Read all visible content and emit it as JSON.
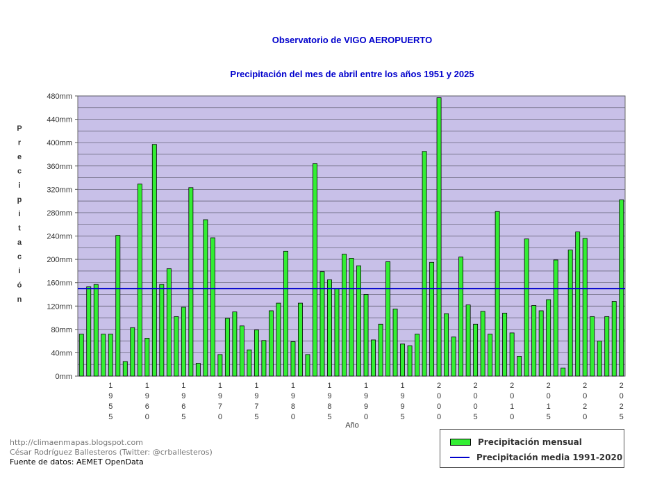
{
  "chart_data": {
    "type": "bar",
    "title": "Observatorio de VIGO AEROPUERTO",
    "subtitle": "Precipitación del mes de abril entre los años 1951 y 2025",
    "xlabel": "Año",
    "ylabel": "Precipitación",
    "ylim": [
      0,
      480
    ],
    "ytick_step": 20,
    "ytick_label_step": 40,
    "y_unit": "mm",
    "x": [
      1951,
      1952,
      1953,
      1954,
      1955,
      1956,
      1957,
      1958,
      1959,
      1960,
      1961,
      1962,
      1963,
      1964,
      1965,
      1966,
      1967,
      1968,
      1969,
      1970,
      1971,
      1972,
      1973,
      1974,
      1975,
      1976,
      1977,
      1978,
      1979,
      1980,
      1981,
      1982,
      1983,
      1984,
      1985,
      1986,
      1987,
      1988,
      1989,
      1990,
      1991,
      1992,
      1993,
      1994,
      1995,
      1996,
      1997,
      1998,
      1999,
      2000,
      2001,
      2002,
      2003,
      2004,
      2005,
      2006,
      2007,
      2008,
      2009,
      2010,
      2011,
      2012,
      2013,
      2014,
      2015,
      2016,
      2017,
      2018,
      2019,
      2020,
      2021,
      2022,
      2023,
      2024,
      2025
    ],
    "x_labeled": [
      1955,
      1960,
      1965,
      1970,
      1975,
      1980,
      1985,
      1990,
      1995,
      2000,
      2005,
      2010,
      2015,
      2020,
      2025
    ],
    "series": [
      {
        "name": "Precipitación mensual",
        "color": "#33ee33",
        "values": [
          72,
          153,
          157,
          72,
          72,
          241,
          25,
          83,
          329,
          65,
          397,
          157,
          184,
          102,
          118,
          323,
          22,
          268,
          237,
          37,
          99,
          110,
          86,
          45,
          79,
          61,
          112,
          125,
          214,
          59,
          125,
          37,
          364,
          179,
          165,
          150,
          209,
          202,
          189,
          140,
          62,
          89,
          196,
          115,
          55,
          52,
          72,
          385,
          195,
          477,
          107,
          67,
          204,
          122,
          89,
          111,
          72,
          282,
          108,
          74,
          34,
          235,
          121,
          112,
          131,
          199,
          14,
          216,
          247,
          236,
          102,
          60,
          102,
          128,
          302
        ]
      },
      {
        "name": "Precipitación media 1991-2020",
        "color": "#0000cc",
        "value": 150
      }
    ],
    "grid": true,
    "plot_background": "#c8c0e8",
    "legend_position": "bottom-right"
  },
  "credits": {
    "line1": "http://climaenmapas.blogspot.com",
    "line2": "César Rodríguez Ballesteros (Twitter: @crballesteros)",
    "line3": "Fuente de datos: AEMET OpenData"
  }
}
